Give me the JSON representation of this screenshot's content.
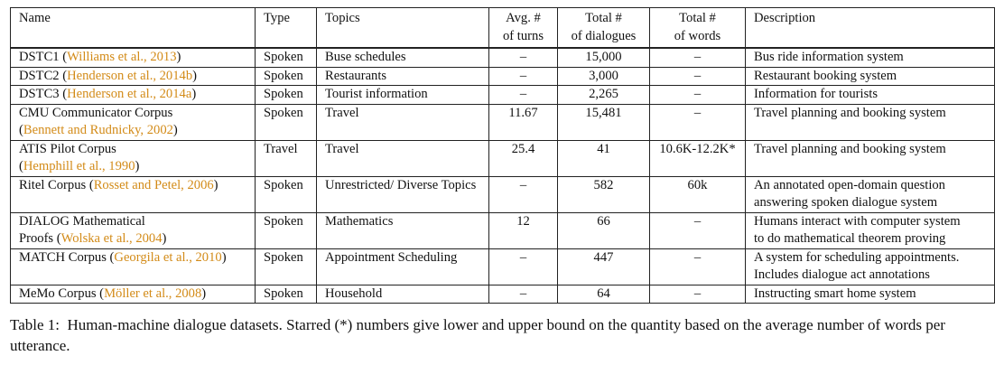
{
  "table": {
    "headers": {
      "name": "Name",
      "type": "Type",
      "topics": "Topics",
      "avg_turns": [
        "Avg. #",
        "of turns"
      ],
      "total_dialogues": [
        "Total #",
        "of dialogues"
      ],
      "total_words": [
        "Total #",
        "of words"
      ],
      "description": "Description"
    },
    "rows": [
      {
        "name": "DSTC1 (",
        "cite": "Williams et al., 2013",
        "name_end": ")",
        "name2": "",
        "cite2": "",
        "name2_end": "",
        "type": "Spoken",
        "topics": "Buse schedules",
        "avg_turns": "–",
        "dialogues": "15,000",
        "words": "–",
        "desc": [
          "Bus ride information system"
        ]
      },
      {
        "name": "DSTC2 (",
        "cite": "Henderson et al., 2014b",
        "name_end": ")",
        "name2": "",
        "cite2": "",
        "name2_end": "",
        "type": "Spoken",
        "topics": "Restaurants",
        "avg_turns": "–",
        "dialogues": "3,000",
        "words": "–",
        "desc": [
          "Restaurant booking system"
        ]
      },
      {
        "name": "DSTC3 (",
        "cite": "Henderson et al., 2014a",
        "name_end": ")",
        "name2": "",
        "cite2": "",
        "name2_end": "",
        "type": "Spoken",
        "topics": "Tourist information",
        "avg_turns": "–",
        "dialogues": "2,265",
        "words": "–",
        "desc": [
          "Information for tourists"
        ]
      },
      {
        "name": "CMU Communicator Corpus",
        "cite": "",
        "name_end": "",
        "name2": "(",
        "cite2": "Bennett and Rudnicky, 2002",
        "name2_end": ")",
        "type": "Spoken",
        "topics": "Travel",
        "avg_turns": "11.67",
        "dialogues": "15,481",
        "words": "–",
        "desc": [
          "Travel planning and booking system"
        ]
      },
      {
        "name": "ATIS Pilot Corpus",
        "cite": "",
        "name_end": "",
        "name2": "(",
        "cite2": "Hemphill et al., 1990",
        "name2_end": ")",
        "type": "Travel",
        "topics": "Travel",
        "avg_turns": "25.4",
        "dialogues": "41",
        "words": "10.6K-12.2K*",
        "desc": [
          "Travel planning and booking system"
        ]
      },
      {
        "name": "Ritel Corpus (",
        "cite": "Rosset and Petel, 2006",
        "name_end": ")",
        "name2": "",
        "cite2": "",
        "name2_end": "",
        "type": "Spoken",
        "topics": "Unrestricted/ Diverse Topics",
        "avg_turns": "–",
        "dialogues": "582",
        "words": "60k",
        "desc": [
          "An annotated open-domain question",
          "answering spoken dialogue system"
        ]
      },
      {
        "name": "DIALOG Mathematical",
        "cite": "",
        "name_end": "",
        "name2": "Proofs (",
        "cite2": "Wolska et al., 2004",
        "name2_end": ")",
        "type": "Spoken",
        "topics": "Mathematics",
        "avg_turns": "12",
        "dialogues": "66",
        "words": "–",
        "desc": [
          "Humans interact with computer system",
          "to do mathematical theorem proving"
        ]
      },
      {
        "name": "MATCH Corpus (",
        "cite": "Georgila et al., 2010",
        "name_end": ")",
        "name2": "",
        "cite2": "",
        "name2_end": "",
        "type": "Spoken",
        "topics": "Appointment Scheduling",
        "avg_turns": "–",
        "dialogues": "447",
        "words": "–",
        "desc": [
          "A system for scheduling appointments.",
          "Includes dialogue act annotations"
        ]
      },
      {
        "name": "MeMo Corpus (",
        "cite": "Möller et al., 2008",
        "name_end": ")",
        "name2": "",
        "cite2": "",
        "name2_end": "",
        "type": "Spoken",
        "topics": "Household",
        "avg_turns": "–",
        "dialogues": "64",
        "words": "–",
        "desc": [
          "Instructing smart home system"
        ]
      }
    ]
  },
  "caption": {
    "label": "Table 1:",
    "text": "Human-machine dialogue datasets. Starred (*) numbers give lower and upper bound on the quantity based on the average number of words per utterance."
  }
}
